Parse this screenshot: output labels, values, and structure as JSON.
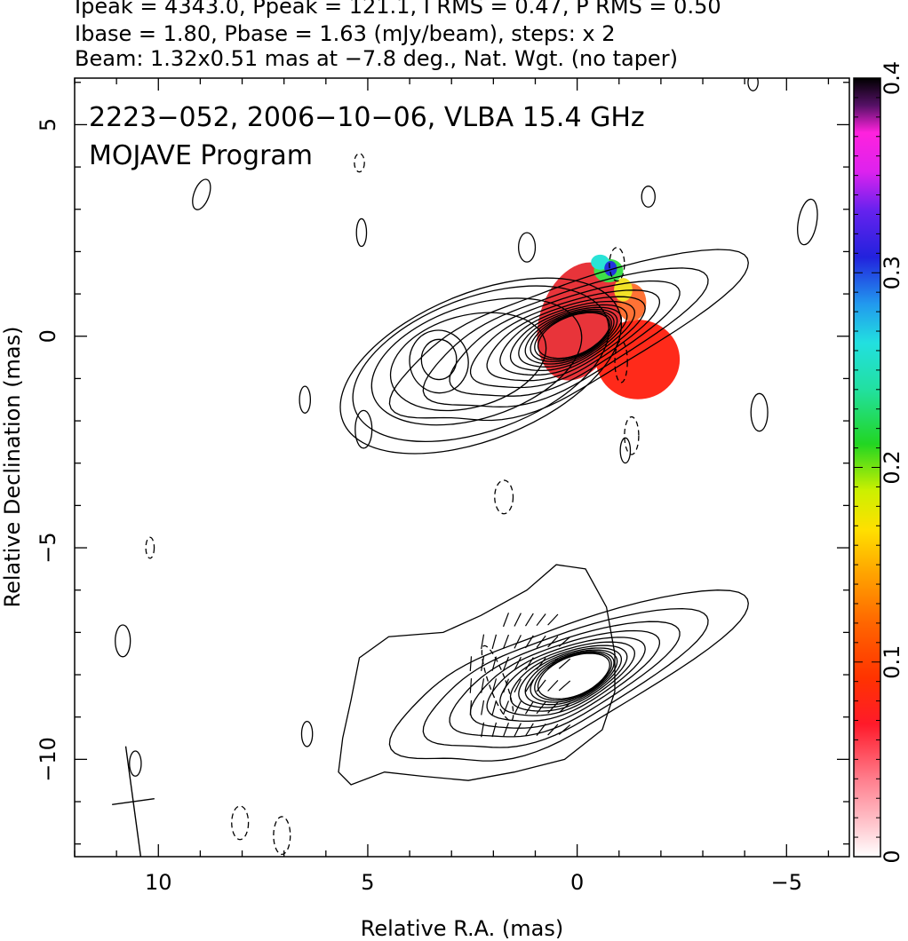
{
  "header": {
    "line1": "Ipeak = 4343.0, Ppeak = 121.1, I RMS = 0.47, P RMS = 0.50",
    "line2": "Ibase = 1.80, Pbase = 1.63 (mJy/beam), steps: x 2",
    "line3": "Beam: 1.32x0.51 mas at −7.8 deg., Nat. Wgt. (no taper)"
  },
  "chart_data": {
    "type": "heatmap",
    "title": "",
    "annotations": [
      "2223−052, 2006−10−06, VLBA 15.4 GHz",
      "MOJAVE Program"
    ],
    "xlabel": "Relative R.A. (mas)",
    "ylabel": "Relative Declination (mas)",
    "xlim": [
      12,
      -6.5
    ],
    "ylim": [
      -12.3,
      6.1
    ],
    "x_ticks": [
      10,
      5,
      0,
      -5
    ],
    "x_tick_labels": [
      "10",
      "5",
      "0",
      "−5"
    ],
    "y_ticks": [
      5,
      0,
      -5,
      -10
    ],
    "y_tick_labels": [
      "5",
      "0",
      "−5",
      "−10"
    ],
    "colorbar": {
      "range": [
        0,
        0.4
      ],
      "ticks": [
        0,
        0.1,
        0.2,
        0.3,
        0.4
      ],
      "tick_labels": [
        "0",
        "0.1",
        "0.2",
        "0.3",
        "0.4"
      ]
    },
    "panels": [
      {
        "name": "Stokes I contours with fractional polarization color",
        "offset_dec": 0
      },
      {
        "name": "Stokes I contours with polarization vectors",
        "offset_dec": -8
      }
    ],
    "contour_levels_mJy_per_beam": [
      1.8,
      3.6,
      7.2,
      14.4,
      28.8,
      57.6,
      115.2,
      230.4,
      460.8,
      921.6,
      1843.2,
      3686.4
    ],
    "beam": {
      "major_mas": 1.32,
      "minor_mas": 0.51,
      "pa_deg": -7.8
    },
    "peak_position": [
      0,
      0
    ],
    "colors": {
      "core": "#e8343a",
      "jet": "#ff2a1a",
      "edge": "#ff6a2a",
      "yellow": "#f2e227",
      "green": "#3ee04a",
      "cyan": "#29e3d6",
      "blue": "#2233dd"
    }
  }
}
